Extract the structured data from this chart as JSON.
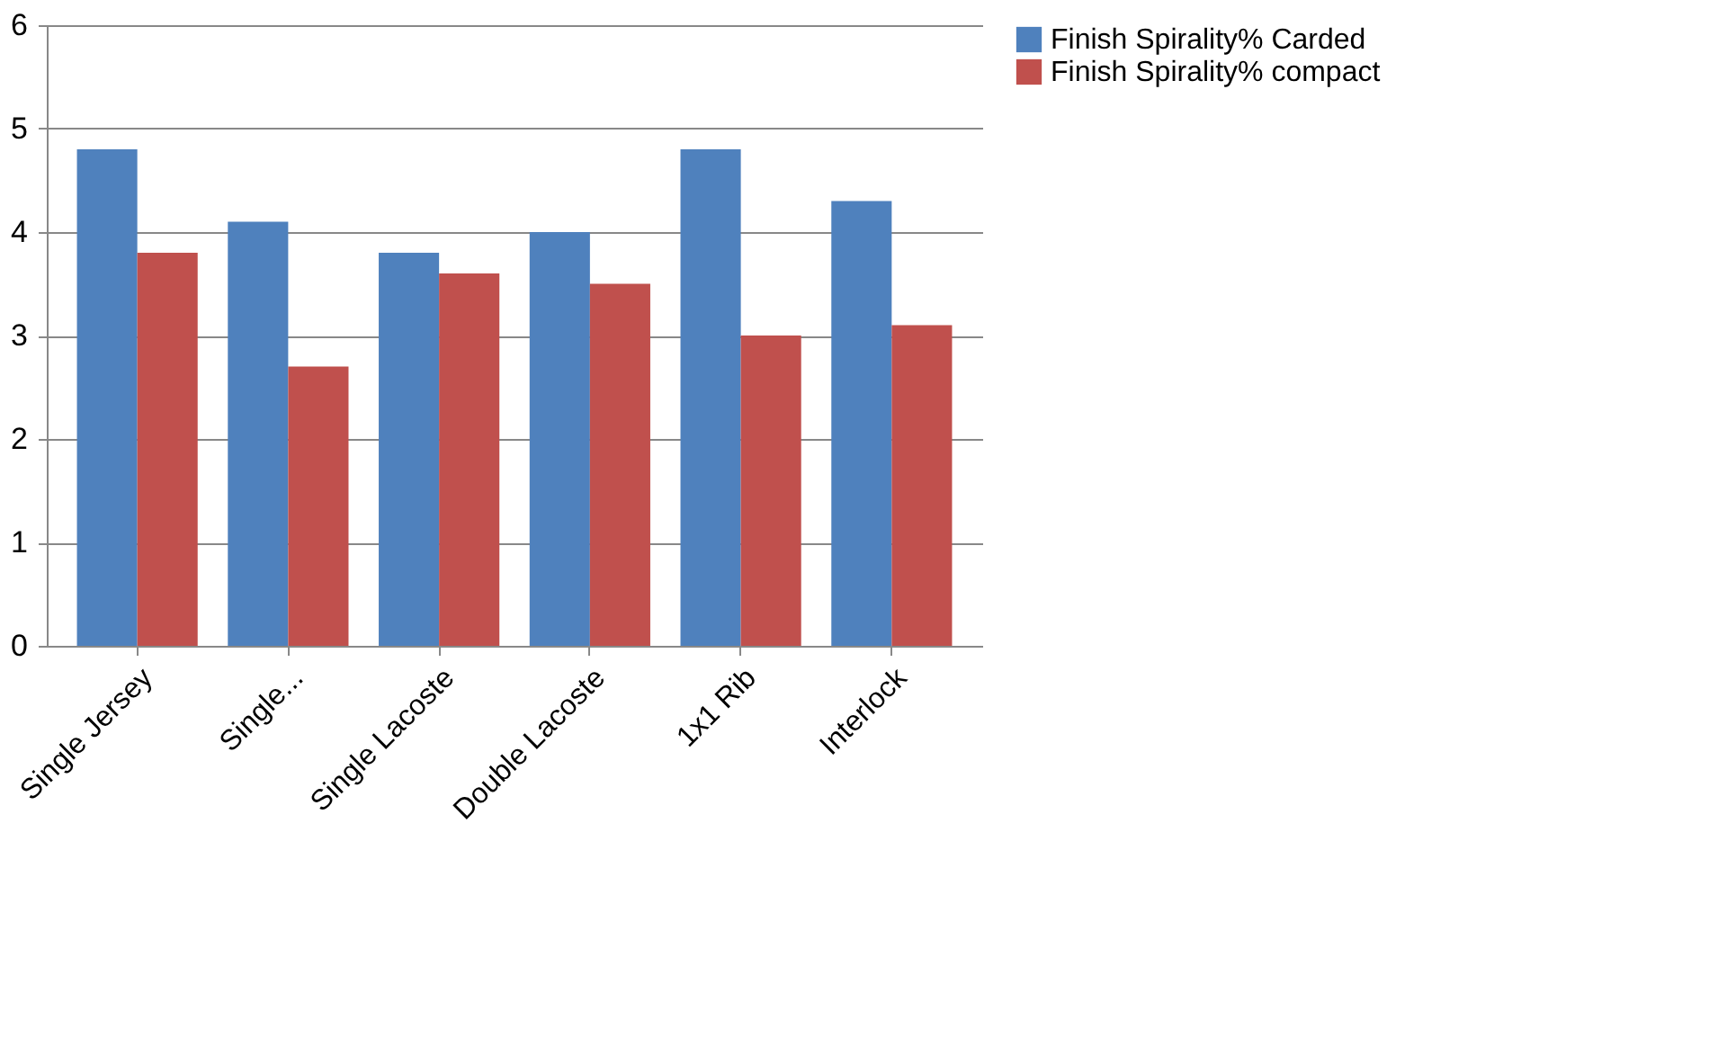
{
  "chart_data": {
    "type": "bar",
    "categories": [
      "Single Jersey",
      "Single...",
      "Single Lacoste",
      "Double Lacoste",
      "1x1 Rib",
      "Interlock"
    ],
    "series": [
      {
        "name": "Finish Spirality% Carded",
        "color": "#4f81bd",
        "values": [
          4.8,
          4.1,
          3.8,
          4.0,
          4.8,
          4.3
        ]
      },
      {
        "name": "Finish Spirality% compact",
        "color": "#c0504d",
        "values": [
          3.8,
          2.7,
          3.6,
          3.5,
          3.0,
          3.1
        ]
      }
    ],
    "ylim": [
      0,
      6
    ],
    "yticks": [
      0,
      1,
      2,
      3,
      4,
      5,
      6
    ],
    "grid": "y",
    "legend": "right"
  }
}
